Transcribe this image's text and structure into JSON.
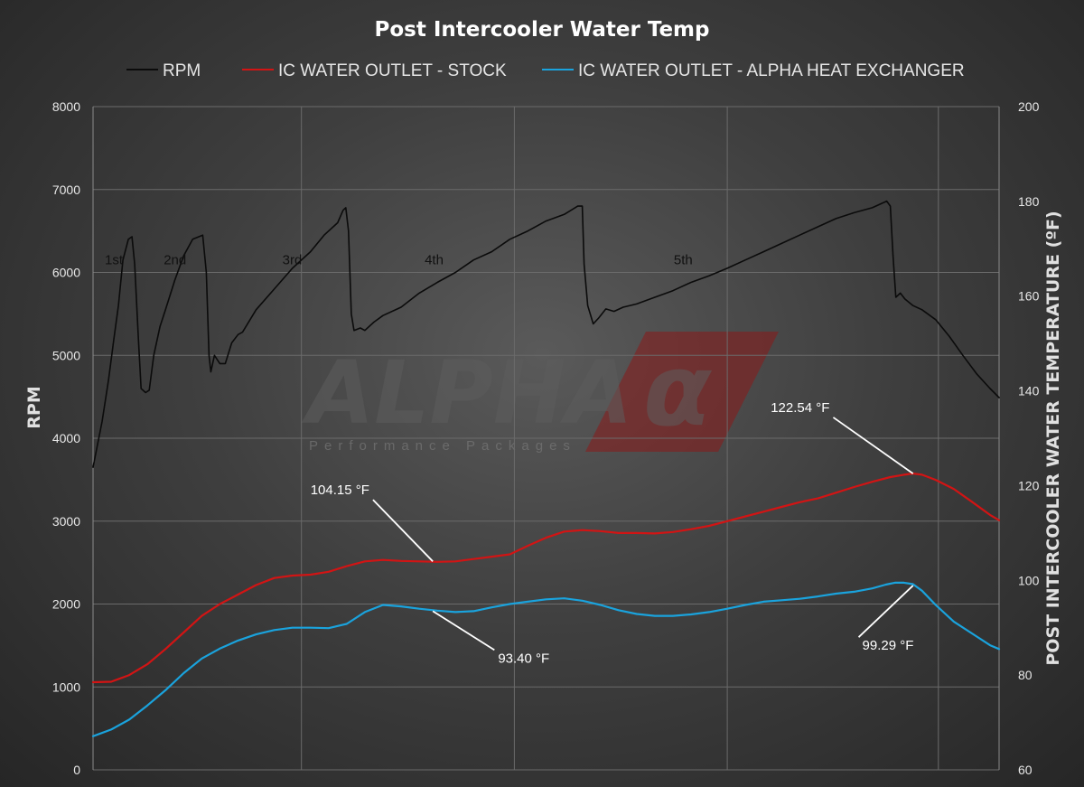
{
  "chart_data": {
    "type": "line",
    "title": "Post Intercooler Water Temp",
    "ylabel_left": "RPM",
    "ylabel_right": "POST INTERCOOLER WATER TEMPERATURE (ºF)",
    "y_left": {
      "min": 0,
      "max": 8000,
      "ticks": [
        0,
        1000,
        2000,
        3000,
        4000,
        5000,
        6000,
        7000,
        8000
      ]
    },
    "y_right": {
      "min": 60,
      "max": 200,
      "ticks": [
        60,
        80,
        100,
        120,
        140,
        160,
        180,
        200
      ]
    },
    "x": {
      "min": 0,
      "max": 100,
      "gridlines": [
        23,
        46.5,
        70,
        93.3
      ]
    },
    "legend_position": "top",
    "series": [
      {
        "name": "RPM",
        "axis": "left",
        "color": "#0b0b0b",
        "points": [
          [
            0,
            3650
          ],
          [
            1,
            4200
          ],
          [
            1.7,
            4700
          ],
          [
            2.3,
            5200
          ],
          [
            2.8,
            5600
          ],
          [
            3.3,
            6150
          ],
          [
            3.9,
            6400
          ],
          [
            4.3,
            6430
          ],
          [
            4.6,
            6100
          ],
          [
            5,
            5200
          ],
          [
            5.3,
            4600
          ],
          [
            5.8,
            4550
          ],
          [
            6.2,
            4580
          ],
          [
            6.7,
            5000
          ],
          [
            7.4,
            5350
          ],
          [
            8,
            5550
          ],
          [
            9,
            5900
          ],
          [
            10,
            6200
          ],
          [
            11,
            6400
          ],
          [
            12.1,
            6450
          ],
          [
            12.5,
            6000
          ],
          [
            12.8,
            5000
          ],
          [
            13,
            4800
          ],
          [
            13.4,
            5000
          ],
          [
            14,
            4900
          ],
          [
            14.6,
            4900
          ],
          [
            15.3,
            5150
          ],
          [
            16,
            5250
          ],
          [
            16.5,
            5280
          ],
          [
            18,
            5550
          ],
          [
            20,
            5800
          ],
          [
            22,
            6050
          ],
          [
            24,
            6250
          ],
          [
            25.5,
            6450
          ],
          [
            27,
            6600
          ],
          [
            27.6,
            6750
          ],
          [
            27.9,
            6780
          ],
          [
            28.2,
            6500
          ],
          [
            28.5,
            5500
          ],
          [
            28.8,
            5300
          ],
          [
            29.5,
            5330
          ],
          [
            30,
            5300
          ],
          [
            31,
            5400
          ],
          [
            32,
            5480
          ],
          [
            34,
            5580
          ],
          [
            36,
            5750
          ],
          [
            38,
            5880
          ],
          [
            40,
            6000
          ],
          [
            42,
            6150
          ],
          [
            44,
            6250
          ],
          [
            46,
            6400
          ],
          [
            48,
            6500
          ],
          [
            50,
            6620
          ],
          [
            52,
            6700
          ],
          [
            53.5,
            6800
          ],
          [
            54,
            6800
          ],
          [
            54.2,
            6100
          ],
          [
            54.6,
            5600
          ],
          [
            55.2,
            5380
          ],
          [
            55.8,
            5450
          ],
          [
            56.6,
            5560
          ],
          [
            57.5,
            5530
          ],
          [
            58.5,
            5580
          ],
          [
            60,
            5620
          ],
          [
            62,
            5700
          ],
          [
            64,
            5780
          ],
          [
            66,
            5880
          ],
          [
            68,
            5960
          ],
          [
            70,
            6050
          ],
          [
            72,
            6150
          ],
          [
            74,
            6250
          ],
          [
            76,
            6350
          ],
          [
            78,
            6450
          ],
          [
            80,
            6550
          ],
          [
            82,
            6650
          ],
          [
            84,
            6720
          ],
          [
            86,
            6780
          ],
          [
            87.6,
            6860
          ],
          [
            88,
            6800
          ],
          [
            88.3,
            6200
          ],
          [
            88.6,
            5700
          ],
          [
            89.1,
            5750
          ],
          [
            89.6,
            5680
          ],
          [
            90.5,
            5600
          ],
          [
            91.5,
            5550
          ],
          [
            93,
            5430
          ],
          [
            94.5,
            5230
          ],
          [
            96,
            5000
          ],
          [
            97.5,
            4780
          ],
          [
            99,
            4600
          ],
          [
            100,
            4490
          ]
        ]
      },
      {
        "name": "IC WATER OUTLET - STOCK",
        "axis": "right",
        "color": "#d21414",
        "points": [
          [
            0,
            78.5
          ],
          [
            2,
            78.6
          ],
          [
            4,
            80
          ],
          [
            6,
            82.3
          ],
          [
            8,
            85.5
          ],
          [
            10,
            89
          ],
          [
            12,
            92.5
          ],
          [
            14,
            95
          ],
          [
            16,
            97
          ],
          [
            18,
            99
          ],
          [
            20,
            100.5
          ],
          [
            22,
            101
          ],
          [
            24,
            101.2
          ],
          [
            26,
            101.8
          ],
          [
            28,
            103
          ],
          [
            30,
            104
          ],
          [
            32,
            104.3
          ],
          [
            34,
            104.1
          ],
          [
            36,
            104
          ],
          [
            38,
            103.9
          ],
          [
            40,
            104
          ],
          [
            42,
            104.5
          ],
          [
            44,
            105
          ],
          [
            46,
            105.5
          ],
          [
            48,
            107.3
          ],
          [
            50,
            109
          ],
          [
            52,
            110.3
          ],
          [
            54,
            110.6
          ],
          [
            56,
            110.4
          ],
          [
            58,
            110
          ],
          [
            60,
            110
          ],
          [
            62,
            109.9
          ],
          [
            64,
            110.2
          ],
          [
            66,
            110.8
          ],
          [
            68,
            111.5
          ],
          [
            70,
            112.5
          ],
          [
            72,
            113.5
          ],
          [
            74,
            114.5
          ],
          [
            76,
            115.5
          ],
          [
            78,
            116.5
          ],
          [
            80,
            117.3
          ],
          [
            82,
            118.5
          ],
          [
            84,
            119.7
          ],
          [
            86,
            120.8
          ],
          [
            88,
            121.8
          ],
          [
            89.5,
            122.3
          ],
          [
            90.5,
            122.54
          ],
          [
            91.5,
            122.3
          ],
          [
            93,
            121.2
          ],
          [
            95,
            119.3
          ],
          [
            97,
            116.6
          ],
          [
            99,
            113.8
          ],
          [
            100,
            112.7
          ]
        ]
      },
      {
        "name": "IC WATER OUTLET - ALPHA HEAT EXCHANGER",
        "axis": "right",
        "color": "#1aa3dd",
        "points": [
          [
            0,
            67.1
          ],
          [
            2,
            68.5
          ],
          [
            4,
            70.6
          ],
          [
            6,
            73.6
          ],
          [
            8,
            76.8
          ],
          [
            10,
            80.4
          ],
          [
            12,
            83.5
          ],
          [
            14,
            85.6
          ],
          [
            16,
            87.3
          ],
          [
            18,
            88.6
          ],
          [
            20,
            89.5
          ],
          [
            22,
            90
          ],
          [
            24,
            90
          ],
          [
            26,
            89.9
          ],
          [
            28,
            90.8
          ],
          [
            30,
            93.3
          ],
          [
            32,
            94.8
          ],
          [
            34,
            94.5
          ],
          [
            36,
            94
          ],
          [
            38,
            93.6
          ],
          [
            40,
            93.3
          ],
          [
            42,
            93.5
          ],
          [
            44,
            94.3
          ],
          [
            46,
            95
          ],
          [
            48,
            95.5
          ],
          [
            50,
            96
          ],
          [
            52,
            96.2
          ],
          [
            54,
            95.7
          ],
          [
            56,
            94.8
          ],
          [
            58,
            93.7
          ],
          [
            60,
            92.9
          ],
          [
            62,
            92.5
          ],
          [
            64,
            92.5
          ],
          [
            66,
            92.8
          ],
          [
            68,
            93.3
          ],
          [
            70,
            94
          ],
          [
            72,
            94.8
          ],
          [
            74,
            95.5
          ],
          [
            76,
            95.8
          ],
          [
            78,
            96.1
          ],
          [
            80,
            96.6
          ],
          [
            82,
            97.2
          ],
          [
            84,
            97.6
          ],
          [
            86,
            98.3
          ],
          [
            87.5,
            99.1
          ],
          [
            88.5,
            99.5
          ],
          [
            89.5,
            99.5
          ],
          [
            90.5,
            99.2
          ],
          [
            91.5,
            97.8
          ],
          [
            93,
            94.8
          ],
          [
            95,
            91.3
          ],
          [
            97,
            88.8
          ],
          [
            99,
            86.3
          ],
          [
            100,
            85.5
          ]
        ]
      }
    ],
    "gear_labels": [
      {
        "text": "1st",
        "x": 1.3,
        "y": 6150
      },
      {
        "text": "2nd",
        "x": 7.8,
        "y": 6150
      },
      {
        "text": "3rd",
        "x": 20.9,
        "y": 6150
      },
      {
        "text": "4th",
        "x": 36.6,
        "y": 6150
      },
      {
        "text": "5th",
        "x": 64.1,
        "y": 6150
      }
    ],
    "annotations": [
      {
        "text": "104.15 °F",
        "series": "IC WATER OUTLET - STOCK",
        "x": 37.5,
        "y": 104.0,
        "label_x": 30.9,
        "label_y": 117.0
      },
      {
        "text": "122.54 °F",
        "series": "IC WATER OUTLET - STOCK",
        "x": 90.5,
        "y": 122.54,
        "label_x": 81.7,
        "label_y": 134.4
      },
      {
        "text": "93.40 °F",
        "series": "IC WATER OUTLET - ALPHA HEAT EXCHANGER",
        "x": 37.5,
        "y": 93.5,
        "label_x": 44.3,
        "label_y": 85.3
      },
      {
        "text": "99.29 °F",
        "series": "IC WATER OUTLET - ALPHA HEAT EXCHANGER",
        "x": 90.5,
        "y": 98.9,
        "label_x": 84.5,
        "label_y": 88.0
      }
    ]
  },
  "watermark": {
    "logo_text": "ALPHA",
    "symbol": "α",
    "tagline": "Performance Packages"
  },
  "colors": {
    "background": "#3f3f3f",
    "gridline": "#6b6b6b",
    "rpm": "#0b0b0b",
    "stock": "#d21414",
    "alpha": "#1aa3dd",
    "watermark_red": "#8b1a1a"
  }
}
